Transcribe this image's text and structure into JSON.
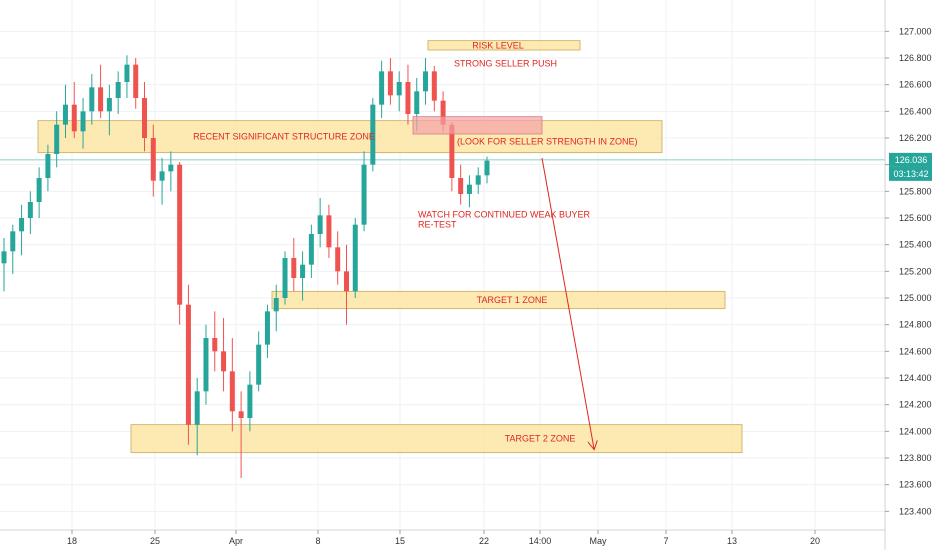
{
  "chart_data": {
    "type": "candlestick",
    "instrument_note": "",
    "y_axis": {
      "ticks": [
        "127.000",
        "126.800",
        "126.600",
        "126.400",
        "126.200",
        "126.000",
        "125.800",
        "125.600",
        "125.400",
        "125.200",
        "125.000",
        "124.800",
        "124.600",
        "124.400",
        "124.200",
        "124.000",
        "123.800",
        "123.600",
        "123.400"
      ],
      "ylim": [
        123.32,
        127.1
      ]
    },
    "x_axis": {
      "ticks": [
        "18",
        "25",
        "Apr",
        "8",
        "15",
        "22",
        "14:00",
        "May",
        "7",
        "13",
        "20"
      ]
    },
    "last_price": {
      "label": "126.036",
      "value": 126.036,
      "color": "#26a69a"
    },
    "countdown": {
      "label": "03:13:42",
      "color": "#26a69a"
    },
    "colors": {
      "up": "#26a69a",
      "down": "#ef5350",
      "zone_fill": "#fde6a6",
      "zone_stroke": "#c9a95a",
      "annotation": "#e0261f",
      "risk_box": "#f3a1a6"
    },
    "zones": [
      {
        "label": "RISK LEVEL",
        "y_low": 126.86,
        "y_high": 126.93,
        "x_start": "Apr 17",
        "x_end": "Apr 25"
      },
      {
        "label": "RECENT SIGNIFICANT STRUCTURE ZONE",
        "y_low": 126.09,
        "y_high": 126.33,
        "x_start": "Mar 14",
        "x_end": "May 7"
      },
      {
        "label": "TARGET 1 ZONE",
        "y_low": 124.92,
        "y_high": 125.05,
        "x_start": "Apr 4",
        "x_end": "May 12"
      },
      {
        "label": "TARGET 2 ZONE",
        "y_low": 123.84,
        "y_high": 124.05,
        "x_start": "Mar 23",
        "x_end": "May 13"
      }
    ],
    "annotations": [
      {
        "text": "STRONG SELLER PUSH"
      },
      {
        "text": "(LOOK FOR SELLER STRENGTH IN ZONE)"
      },
      {
        "text": "WATCH FOR CONTINUED WEAK BUYER"
      },
      {
        "text": "RE-TEST"
      }
    ],
    "projection_arrow": {
      "from_value": 126.05,
      "to_value": 123.87
    },
    "candles": [
      [
        125.26,
        125.45,
        125.05,
        125.35
      ],
      [
        125.35,
        125.55,
        125.18,
        125.5
      ],
      [
        125.5,
        125.7,
        125.32,
        125.6
      ],
      [
        125.6,
        125.8,
        125.48,
        125.72
      ],
      [
        125.72,
        125.98,
        125.6,
        125.9
      ],
      [
        125.9,
        126.15,
        125.8,
        126.08
      ],
      [
        126.08,
        126.4,
        125.98,
        126.3
      ],
      [
        126.3,
        126.6,
        126.2,
        126.45
      ],
      [
        126.45,
        126.62,
        126.2,
        126.25
      ],
      [
        126.25,
        126.5,
        126.12,
        126.4
      ],
      [
        126.4,
        126.68,
        126.3,
        126.58
      ],
      [
        126.58,
        126.75,
        126.35,
        126.4
      ],
      [
        126.4,
        126.6,
        126.22,
        126.5
      ],
      [
        126.5,
        126.7,
        126.38,
        126.62
      ],
      [
        126.62,
        126.82,
        126.5,
        126.75
      ],
      [
        126.75,
        126.8,
        126.42,
        126.5
      ],
      [
        126.5,
        126.62,
        126.1,
        126.2
      ],
      [
        126.2,
        126.3,
        125.76,
        125.88
      ],
      [
        125.88,
        126.05,
        125.7,
        125.95
      ],
      [
        125.95,
        126.1,
        125.8,
        126.0
      ],
      [
        126.0,
        126.02,
        124.8,
        124.95
      ],
      [
        124.95,
        125.1,
        123.9,
        124.05
      ],
      [
        124.05,
        124.4,
        123.82,
        124.3
      ],
      [
        124.3,
        124.8,
        124.2,
        124.7
      ],
      [
        124.7,
        124.9,
        124.45,
        124.6
      ],
      [
        124.6,
        124.85,
        124.3,
        124.45
      ],
      [
        124.45,
        124.7,
        124.0,
        124.15
      ],
      [
        124.15,
        124.3,
        123.65,
        124.1
      ],
      [
        124.1,
        124.45,
        124.0,
        124.35
      ],
      [
        124.35,
        124.75,
        124.3,
        124.65
      ],
      [
        124.65,
        124.95,
        124.55,
        124.9
      ],
      [
        124.9,
        125.1,
        124.75,
        125.0
      ],
      [
        125.0,
        125.35,
        124.95,
        125.3
      ],
      [
        125.3,
        125.45,
        125.05,
        125.15
      ],
      [
        125.15,
        125.35,
        124.98,
        125.25
      ],
      [
        125.25,
        125.55,
        125.15,
        125.48
      ],
      [
        125.48,
        125.75,
        125.38,
        125.62
      ],
      [
        125.62,
        125.7,
        125.3,
        125.38
      ],
      [
        125.38,
        125.5,
        125.1,
        125.2
      ],
      [
        125.2,
        125.4,
        124.8,
        125.05
      ],
      [
        125.05,
        125.6,
        125.0,
        125.55
      ],
      [
        125.55,
        126.1,
        125.5,
        126.0
      ],
      [
        126.0,
        126.5,
        125.95,
        126.45
      ],
      [
        126.45,
        126.78,
        126.35,
        126.7
      ],
      [
        126.7,
        126.8,
        126.45,
        126.52
      ],
      [
        126.52,
        126.7,
        126.4,
        126.62
      ],
      [
        126.62,
        126.75,
        126.3,
        126.38
      ],
      [
        126.38,
        126.65,
        126.25,
        126.55
      ],
      [
        126.55,
        126.8,
        126.45,
        126.7
      ],
      [
        126.7,
        126.74,
        126.4,
        126.48
      ],
      [
        126.48,
        126.55,
        126.25,
        126.3
      ],
      [
        126.3,
        126.32,
        125.8,
        125.9
      ],
      [
        125.9,
        126.0,
        125.7,
        125.78
      ],
      [
        125.78,
        125.92,
        125.68,
        125.85
      ],
      [
        125.85,
        125.98,
        125.78,
        125.92
      ],
      [
        125.92,
        126.06,
        125.86,
        126.03
      ]
    ]
  }
}
